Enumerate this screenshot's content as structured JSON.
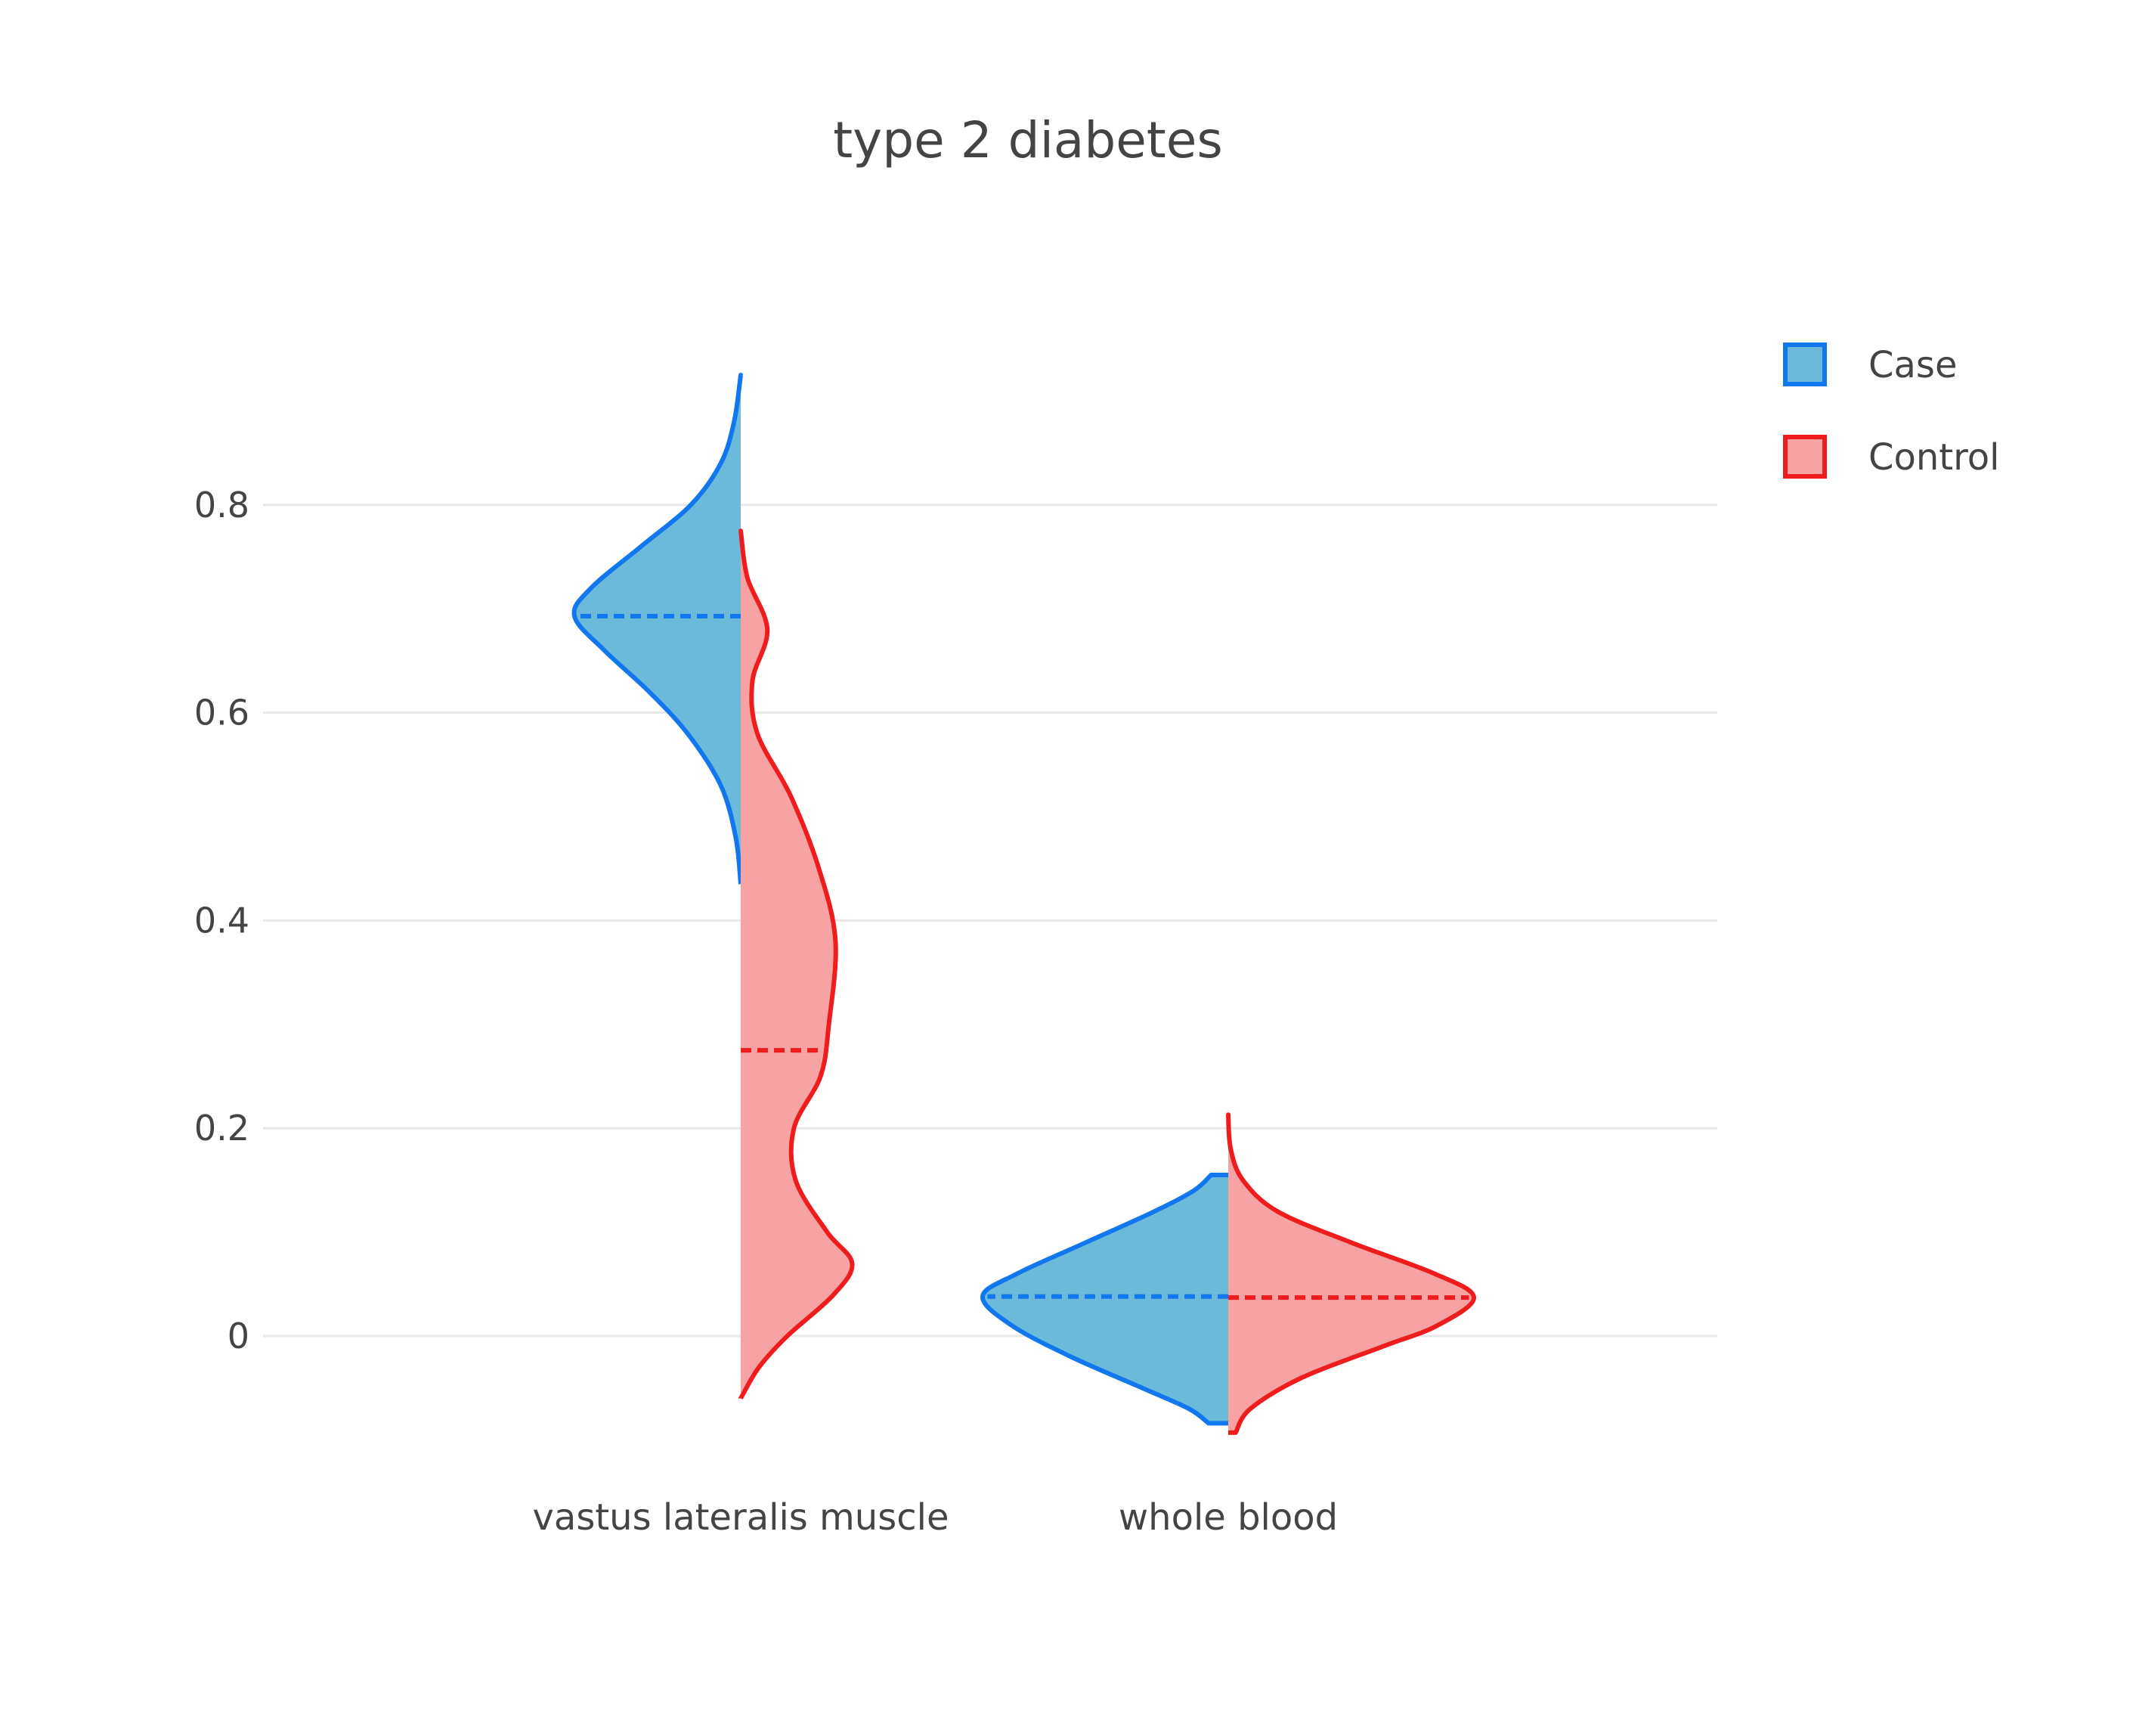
{
  "chart_data": {
    "type": "violin",
    "title": "type 2 diabetes",
    "xlabel": "",
    "ylabel": "",
    "ylim": [
      -0.115,
      0.95
    ],
    "y_ticks": [
      0,
      0.2,
      0.4,
      0.6,
      0.8
    ],
    "y_tick_labels": [
      "0",
      "0.2",
      "0.4",
      "0.6",
      "0.8"
    ],
    "grid": true,
    "legend_position": "top-right",
    "categories": [
      "vastus lateralis muscle",
      "whole blood"
    ],
    "series": [
      {
        "name": "Case",
        "side": "negative",
        "line_color": "#1177ee",
        "fill_color": "#6cbad9",
        "violins": [
          {
            "category": "vastus lateralis muscle",
            "median": 0.693,
            "density": [
              [
                0.435,
                0.0
              ],
              [
                0.48,
                0.03
              ],
              [
                0.53,
                0.12
              ],
              [
                0.58,
                0.32
              ],
              [
                0.62,
                0.55
              ],
              [
                0.66,
                0.82
              ],
              [
                0.693,
                1.0
              ],
              [
                0.72,
                0.9
              ],
              [
                0.76,
                0.6
              ],
              [
                0.8,
                0.3
              ],
              [
                0.84,
                0.12
              ],
              [
                0.88,
                0.04
              ],
              [
                0.925,
                0.0
              ]
            ]
          },
          {
            "category": "whole blood",
            "median": 0.038,
            "density": [
              [
                -0.084,
                0.08
              ],
              [
                -0.07,
                0.16
              ],
              [
                -0.05,
                0.35
              ],
              [
                -0.02,
                0.64
              ],
              [
                0.01,
                0.88
              ],
              [
                0.038,
                1.0
              ],
              [
                0.06,
                0.86
              ],
              [
                0.09,
                0.58
              ],
              [
                0.12,
                0.3
              ],
              [
                0.14,
                0.14
              ],
              [
                0.155,
                0.07
              ]
            ]
          }
        ]
      },
      {
        "name": "Control",
        "side": "positive",
        "line_color": "#ee1c1c",
        "fill_color": "#f7a3a3",
        "violins": [
          {
            "category": "vastus lateralis muscle",
            "median": 0.275,
            "density": [
              [
                -0.06,
                0.0
              ],
              [
                -0.03,
                0.11
              ],
              [
                0.0,
                0.28
              ],
              [
                0.04,
                0.56
              ],
              [
                0.07,
                0.67
              ],
              [
                0.1,
                0.52
              ],
              [
                0.15,
                0.33
              ],
              [
                0.2,
                0.32
              ],
              [
                0.25,
                0.48
              ],
              [
                0.3,
                0.53
              ],
              [
                0.38,
                0.57
              ],
              [
                0.45,
                0.47
              ],
              [
                0.52,
                0.3
              ],
              [
                0.58,
                0.1
              ],
              [
                0.63,
                0.07
              ],
              [
                0.68,
                0.16
              ],
              [
                0.73,
                0.04
              ],
              [
                0.775,
                0.0
              ]
            ]
          },
          {
            "category": "whole blood",
            "median": 0.037,
            "density": [
              [
                -0.093,
                0.03
              ],
              [
                -0.07,
                0.09
              ],
              [
                -0.04,
                0.3
              ],
              [
                -0.01,
                0.63
              ],
              [
                0.01,
                0.85
              ],
              [
                0.037,
                1.0
              ],
              [
                0.06,
                0.84
              ],
              [
                0.09,
                0.5
              ],
              [
                0.12,
                0.2
              ],
              [
                0.15,
                0.06
              ],
              [
                0.18,
                0.01
              ],
              [
                0.213,
                0.0
              ]
            ]
          }
        ]
      }
    ]
  }
}
